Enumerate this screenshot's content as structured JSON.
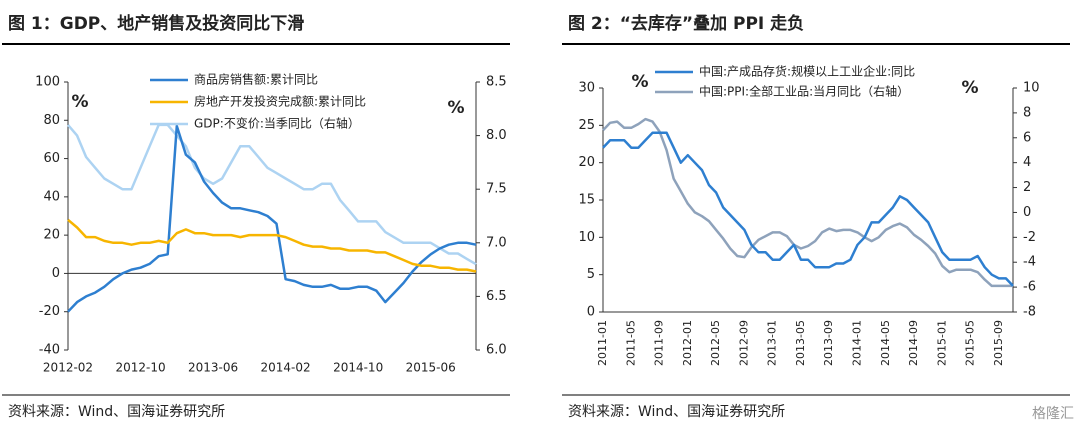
{
  "chart_data": [
    {
      "type": "line",
      "title": "图 1：GDP、地产销售及投资同比下滑",
      "source": "资料来源：Wind、国海证券研究所",
      "y_label": "%",
      "y2_label": "%",
      "categories": [
        "2012-02",
        null,
        null,
        null,
        null,
        null,
        null,
        null,
        "2012-10",
        null,
        null,
        null,
        null,
        null,
        null,
        null,
        "2013-06",
        null,
        null,
        null,
        null,
        null,
        null,
        null,
        "2014-02",
        null,
        null,
        null,
        null,
        null,
        null,
        null,
        "2014-10",
        null,
        null,
        null,
        null,
        null,
        null,
        null,
        "2015-06",
        null,
        null,
        null,
        null,
        null
      ],
      "ylim": [
        -40,
        100
      ],
      "yticks": [
        -40,
        -20,
        0,
        20,
        40,
        60,
        80,
        100
      ],
      "y2lim": [
        6,
        8.5
      ],
      "y2ticks": [
        {
          "value": 6,
          "label": "6.0"
        },
        6.5,
        {
          "value": 7,
          "label": "7.0"
        },
        7.5,
        {
          "value": 8,
          "label": "8.0"
        },
        8.5
      ],
      "series": [
        {
          "name": "商品房销售额:累计同比",
          "color": "#2e7fd0",
          "values": [
            -20,
            -15,
            -12,
            -10,
            -7,
            -3,
            0,
            2,
            3,
            5,
            9,
            10,
            77,
            62,
            58,
            48,
            42,
            37,
            34,
            34,
            33,
            32,
            30,
            26,
            -3,
            -4,
            -6,
            -7,
            -7,
            -6,
            -8,
            -8,
            -7,
            -7,
            -9,
            -15,
            -10,
            -5,
            1,
            6,
            10,
            13,
            15,
            16,
            16,
            15
          ]
        },
        {
          "name": "房地产开发投资完成额:累计同比",
          "color": "#f7b500",
          "values": [
            28,
            24,
            19,
            19,
            17,
            16,
            16,
            15,
            16,
            16,
            17,
            16,
            21,
            23,
            21,
            21,
            20,
            20,
            20,
            19,
            20,
            20,
            20,
            20,
            19,
            17,
            15,
            14,
            14,
            13,
            13,
            12,
            12,
            12,
            11,
            11,
            9,
            7,
            5,
            4,
            4,
            3,
            3,
            2,
            2,
            1
          ]
        },
        {
          "name": "GDP:不变价:当季同比（右轴）",
          "color": "#add3f2",
          "axis": "y2",
          "values": [
            8.1,
            8.0,
            7.8,
            7.7,
            7.6,
            7.55,
            7.5,
            7.5,
            7.7,
            7.9,
            8.1,
            8.1,
            8.0,
            7.9,
            7.7,
            7.6,
            7.55,
            7.6,
            7.75,
            7.9,
            7.9,
            7.8,
            7.7,
            7.65,
            7.6,
            7.55,
            7.5,
            7.5,
            7.55,
            7.55,
            7.4,
            7.3,
            7.2,
            7.2,
            7.2,
            7.1,
            7.05,
            7.0,
            7.0,
            7.0,
            7.0,
            6.95,
            6.9,
            6.9,
            6.85,
            6.8
          ]
        }
      ]
    },
    {
      "type": "line",
      "title": "图 2：“去库存”叠加 PPI 走负",
      "source": "资料来源：Wind、国海证券研究所",
      "watermark": "格隆汇",
      "y_label": "%",
      "y2_label": "%",
      "categories": [
        "2011-01",
        null,
        null,
        null,
        "2011-05",
        null,
        null,
        null,
        "2011-09",
        null,
        null,
        null,
        "2012-01",
        null,
        null,
        null,
        "2012-05",
        null,
        null,
        null,
        "2012-09",
        null,
        null,
        null,
        "2013-01",
        null,
        null,
        null,
        "2013-05",
        null,
        null,
        null,
        "2013-09",
        null,
        null,
        null,
        "2014-01",
        null,
        null,
        null,
        "2014-05",
        null,
        null,
        null,
        "2014-09",
        null,
        null,
        null,
        "2015-01",
        null,
        null,
        null,
        "2015-05",
        null,
        null,
        null,
        "2015-09",
        null,
        null
      ],
      "ylim": [
        0,
        30
      ],
      "yticks": [
        0,
        5,
        10,
        15,
        20,
        25,
        30
      ],
      "y2lim": [
        -8,
        10
      ],
      "y2ticks": [
        -8,
        -6,
        -4,
        -2,
        0,
        2,
        4,
        6,
        8,
        10
      ],
      "series": [
        {
          "name": "中国:产成品存货:规模以上工业企业:同比",
          "color": "#2e7fd0",
          "values": [
            22,
            23,
            23,
            23,
            22,
            22,
            23,
            24,
            24,
            24,
            22,
            20,
            21,
            20,
            19,
            17,
            16,
            14,
            13,
            12,
            11,
            9,
            8,
            8,
            7,
            7,
            8,
            9,
            7,
            7,
            6,
            6,
            6,
            6.5,
            6.5,
            7,
            9,
            10,
            12,
            12,
            13,
            14,
            15.5,
            15,
            14,
            13,
            12,
            10,
            8,
            7,
            7,
            7,
            7,
            7.5,
            6,
            5,
            4.5,
            4.5,
            3.5
          ]
        },
        {
          "name": "中国:PPI:全部工业品:当月同比（右轴）",
          "color": "#8ea2bb",
          "axis": "y2",
          "values": [
            6.6,
            7.2,
            7.3,
            6.8,
            6.8,
            7.1,
            7.5,
            7.3,
            6.5,
            5.0,
            2.7,
            1.7,
            0.7,
            0.0,
            -0.3,
            -0.7,
            -1.4,
            -2.1,
            -2.9,
            -3.5,
            -3.6,
            -2.8,
            -2.2,
            -1.9,
            -1.6,
            -1.6,
            -1.9,
            -2.6,
            -2.9,
            -2.7,
            -2.3,
            -1.6,
            -1.3,
            -1.5,
            -1.4,
            -1.4,
            -1.6,
            -2.0,
            -2.3,
            -2.0,
            -1.4,
            -1.1,
            -0.9,
            -1.2,
            -1.8,
            -2.2,
            -2.7,
            -3.3,
            -4.3,
            -4.8,
            -4.6,
            -4.6,
            -4.6,
            -4.8,
            -5.4,
            -5.9,
            -5.9,
            -5.9,
            -5.9
          ]
        }
      ]
    }
  ]
}
